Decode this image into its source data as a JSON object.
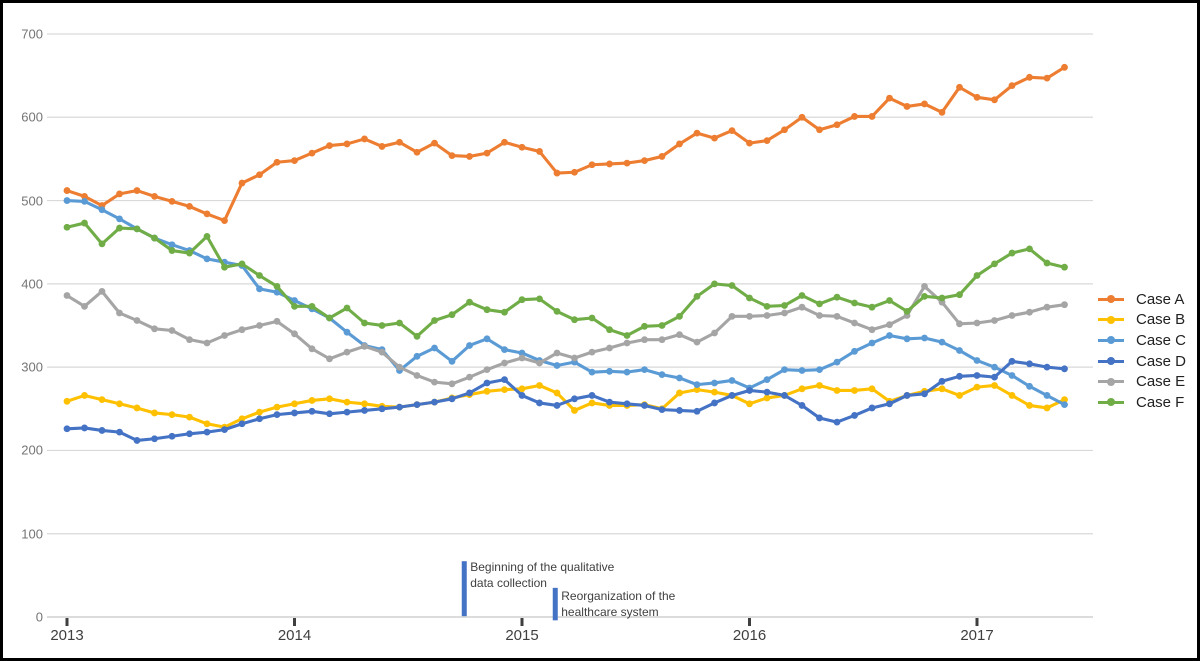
{
  "chart_data": {
    "type": "line",
    "title": "",
    "grid": true,
    "legend_position": "right",
    "x_axis": {
      "tick_labels": [
        "2013",
        "2014",
        "2015",
        "2016",
        "2017"
      ],
      "ticks_at_index": [
        0,
        13,
        26,
        39,
        52
      ],
      "points_per_series": 58
    },
    "y_axis": {
      "min": 0,
      "max": 700,
      "step": 100,
      "tick_labels": [
        "0",
        "100",
        "200",
        "300",
        "400",
        "500",
        "600",
        "700"
      ]
    },
    "series": [
      {
        "name": "Case A",
        "color": "#ED7D31",
        "values": [
          512,
          505,
          494,
          508,
          512,
          505,
          499,
          493,
          484,
          476,
          521,
          531,
          546,
          548,
          557,
          566,
          568,
          574,
          565,
          570,
          558,
          569,
          554,
          553,
          557,
          570,
          564,
          559,
          533,
          534,
          543,
          544,
          545,
          548,
          553,
          568,
          581,
          575,
          584,
          569,
          572,
          585,
          600,
          585,
          591,
          601,
          601,
          623,
          613,
          616,
          606,
          636,
          624,
          621,
          638,
          648,
          647,
          660
        ]
      },
      {
        "name": "Case B",
        "color": "#FFC000",
        "values": [
          259,
          266,
          261,
          256,
          251,
          245,
          243,
          240,
          232,
          228,
          238,
          246,
          252,
          256,
          260,
          262,
          258,
          256,
          253,
          252,
          255,
          258,
          263,
          267,
          271,
          273,
          274,
          278,
          269,
          248,
          257,
          254,
          254,
          255,
          250,
          269,
          273,
          270,
          266,
          256,
          263,
          266,
          274,
          278,
          272,
          272,
          274,
          259,
          266,
          271,
          274,
          266,
          276,
          278,
          266,
          254,
          251,
          261
        ]
      },
      {
        "name": "Case C",
        "color": "#5B9BD5",
        "values": [
          500,
          499,
          489,
          478,
          466,
          455,
          447,
          440,
          430,
          426,
          422,
          394,
          390,
          380,
          370,
          359,
          342,
          326,
          321,
          296,
          313,
          323,
          307,
          326,
          334,
          321,
          317,
          308,
          302,
          306,
          294,
          295,
          294,
          297,
          291,
          287,
          279,
          281,
          284,
          275,
          285,
          297,
          296,
          297,
          306,
          319,
          329,
          338,
          334,
          335,
          330,
          320,
          308,
          300,
          290,
          277,
          266,
          255
        ]
      },
      {
        "name": "Case D",
        "color": "#4472C4",
        "values": [
          226,
          227,
          224,
          222,
          212,
          214,
          217,
          220,
          222,
          225,
          232,
          238,
          243,
          245,
          247,
          244,
          246,
          248,
          250,
          252,
          255,
          258,
          262,
          269,
          281,
          285,
          266,
          257,
          254,
          262,
          266,
          258,
          256,
          254,
          249,
          248,
          247,
          257,
          266,
          272,
          270,
          266,
          254,
          239,
          234,
          242,
          251,
          256,
          266,
          268,
          283,
          289,
          290,
          288,
          307,
          304,
          300,
          298
        ]
      },
      {
        "name": "Case E",
        "color": "#A5A5A5",
        "values": [
          386,
          373,
          391,
          365,
          356,
          346,
          344,
          333,
          329,
          338,
          345,
          350,
          355,
          340,
          322,
          310,
          318,
          325,
          318,
          300,
          290,
          282,
          280,
          288,
          297,
          305,
          311,
          305,
          317,
          311,
          318,
          323,
          329,
          333,
          333,
          339,
          330,
          341,
          361,
          361,
          362,
          365,
          372,
          362,
          361,
          353,
          345,
          351,
          362,
          397,
          378,
          352,
          353,
          356,
          362,
          366,
          372,
          375
        ]
      },
      {
        "name": "Case F",
        "color": "#70AD47",
        "values": [
          468,
          473,
          448,
          467,
          466,
          455,
          440,
          437,
          457,
          420,
          424,
          410,
          397,
          373,
          373,
          359,
          371,
          353,
          350,
          353,
          337,
          356,
          363,
          378,
          369,
          366,
          381,
          382,
          367,
          357,
          359,
          345,
          338,
          349,
          350,
          361,
          385,
          400,
          398,
          383,
          373,
          374,
          386,
          376,
          384,
          377,
          372,
          380,
          367,
          385,
          383,
          387,
          410,
          424,
          437,
          442,
          425,
          420
        ]
      }
    ],
    "annotations": [
      {
        "label": "Beginning of the qualitative data collection",
        "label_lines": [
          "Beginning of the qualitative",
          "data collection"
        ],
        "x_index": 22.7,
        "bar_top_value": 67,
        "bar_bottom_value": 1,
        "bar_color": "#4472C4"
      },
      {
        "label": "Reorganization of the healthcare system",
        "label_lines": [
          "Reorganization of the",
          "healthcare system"
        ],
        "x_index": 27.9,
        "bar_top_value": 35,
        "bar_bottom_value": -4,
        "bar_color": "#4472C4"
      }
    ]
  },
  "colors": {
    "gridline": "#D9D9D9",
    "axis_line": "#C6C6C6",
    "tick_mark": "#3f3f3f",
    "background": "#FFFFFF",
    "border": "#000000"
  }
}
